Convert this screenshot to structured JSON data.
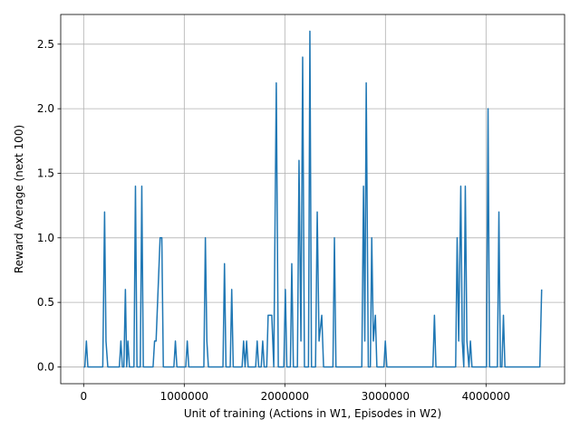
{
  "chart_data": {
    "type": "line",
    "x_label": "Unit of training (Actions in W1, Episodes in W2)",
    "y_label": "Reward Average (next 100)",
    "color": "#1f77b4",
    "grid": true,
    "xlim": [
      -228000,
      4781000
    ],
    "ylim": [
      -0.13,
      2.73
    ],
    "xticks": [
      0,
      1000000,
      2000000,
      3000000,
      4000000
    ],
    "yticks": [
      {
        "value": 0,
        "label": "0.0"
      },
      {
        "value": 0.5,
        "label": "0.5"
      },
      {
        "value": 1,
        "label": "1.0"
      },
      {
        "value": 1.5,
        "label": "1.5"
      },
      {
        "value": 2,
        "label": "2.0"
      },
      {
        "value": 2.5,
        "label": "2.5"
      }
    ],
    "x": [
      0,
      12000,
      27000,
      42000,
      190000,
      208000,
      222000,
      240000,
      355000,
      370000,
      385000,
      400000,
      415000,
      428000,
      440000,
      455000,
      500000,
      515000,
      530000,
      563000,
      578000,
      593000,
      690000,
      705000,
      720000,
      760000,
      777000,
      792000,
      897000,
      912000,
      927000,
      1015000,
      1030000,
      1045000,
      1195000,
      1210000,
      1225000,
      1240000,
      1385000,
      1400000,
      1415000,
      1457000,
      1472000,
      1487000,
      1575000,
      1590000,
      1605000,
      1620000,
      1635000,
      1710000,
      1725000,
      1740000,
      1765000,
      1780000,
      1795000,
      1820000,
      1834000,
      1870000,
      1890000,
      1915000,
      1935000,
      1990000,
      2005000,
      2020000,
      2055000,
      2069000,
      2085000,
      2125000,
      2141000,
      2160000,
      2177000,
      2195000,
      2235000,
      2249000,
      2265000,
      2305000,
      2322000,
      2340000,
      2367000,
      2385000,
      2478000,
      2493000,
      2508000,
      2765000,
      2782000,
      2795000,
      2809000,
      2830000,
      2850000,
      2864000,
      2880000,
      2900000,
      2915000,
      2985000,
      2999000,
      3014000,
      3472000,
      3487000,
      3502000,
      3698000,
      3713000,
      3728000,
      3749000,
      3764000,
      3779000,
      3794000,
      3810000,
      3830000,
      3845000,
      3860000,
      4005000,
      4020000,
      4035000,
      4113000,
      4128000,
      4143000,
      4158000,
      4173000,
      4188000,
      4535000,
      4553000
    ],
    "values": [
      0,
      0,
      0.2,
      0,
      0,
      1.2,
      0.2,
      0,
      0,
      0.2,
      0,
      0,
      0.6,
      0,
      0.2,
      0,
      0,
      1.4,
      0,
      0,
      1.4,
      0,
      0,
      0.2,
      0.2,
      1.0,
      1.0,
      0,
      0,
      0.2,
      0,
      0,
      0.2,
      0,
      0,
      1.0,
      0.2,
      0,
      0,
      0.8,
      0,
      0,
      0.6,
      0,
      0,
      0.2,
      0,
      0.2,
      0,
      0,
      0.2,
      0,
      0,
      0.2,
      0,
      0,
      0.4,
      0.4,
      0,
      2.2,
      0,
      0,
      0.6,
      0,
      0,
      0.8,
      0,
      0,
      1.6,
      0.2,
      2.4,
      0,
      0,
      2.6,
      0,
      0,
      1.2,
      0.2,
      0.4,
      0,
      0,
      1.0,
      0,
      0,
      1.4,
      0.2,
      2.2,
      0,
      0,
      1.0,
      0.2,
      0.4,
      0,
      0,
      0.2,
      0,
      0,
      0.4,
      0,
      0,
      1.0,
      0.2,
      1.4,
      0.2,
      0,
      1.4,
      0.2,
      0,
      0.2,
      0,
      0,
      2.0,
      0,
      0,
      1.2,
      0,
      0,
      0.4,
      0,
      0,
      0.6
    ]
  }
}
